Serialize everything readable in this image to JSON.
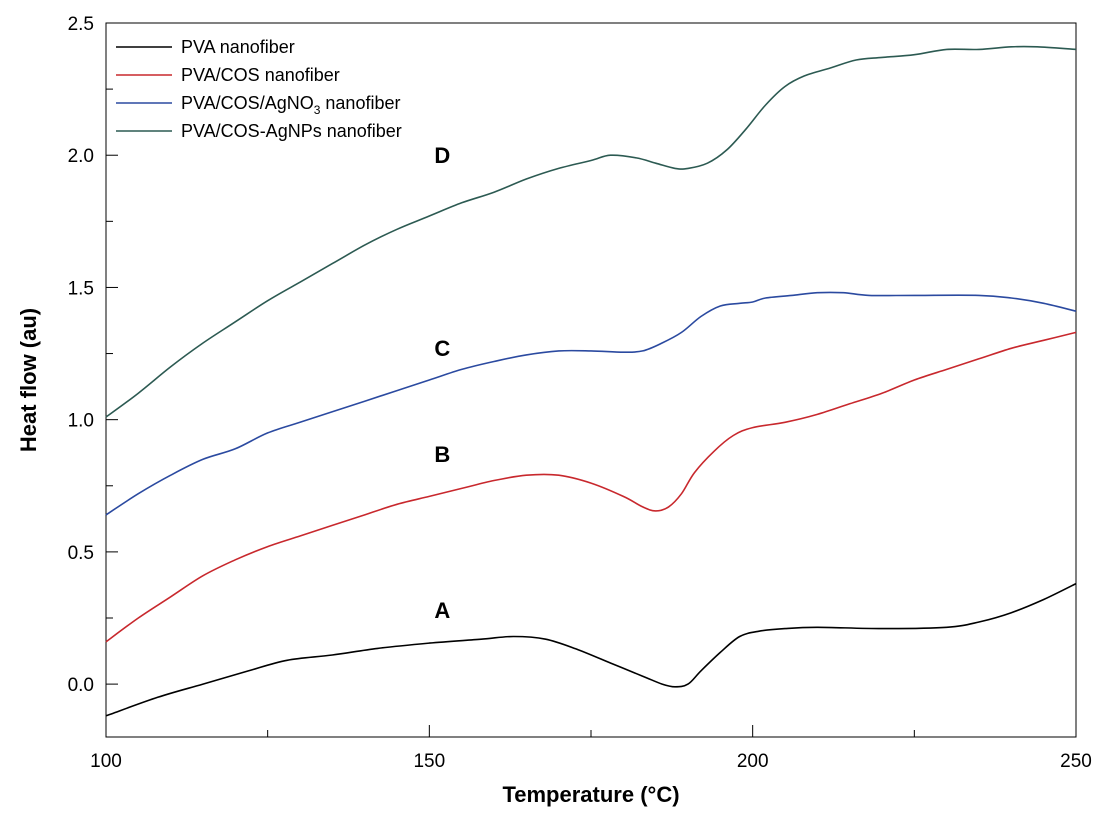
{
  "chart_data": {
    "type": "line",
    "title": "",
    "xlabel": "Temperature (°C)",
    "ylabel": "Heat flow (au)",
    "xlim": [
      100,
      250
    ],
    "ylim": [
      -0.2,
      2.5
    ],
    "x_ticks_major": [
      100,
      150,
      200,
      250
    ],
    "x_tick_labels": [
      "100",
      "150",
      "200",
      "250"
    ],
    "x_ticks_minor": [
      125,
      175,
      225
    ],
    "y_ticks_major": [
      0.0,
      0.5,
      1.0,
      1.5,
      2.0,
      2.5
    ],
    "y_tick_labels": [
      "0.0",
      "0.5",
      "1.0",
      "1.5",
      "2.0",
      "2.5"
    ],
    "y_ticks_minor": [
      0.25,
      0.75,
      1.25,
      1.75,
      2.25
    ],
    "grid": false,
    "legend_position": "top-left",
    "series": [
      {
        "name": "PVA nanofiber",
        "label_main": "PVA nanofiber",
        "label_sub": "",
        "label_after": "",
        "curve_label": "A",
        "curve_label_at": [
          152,
          0.25
        ],
        "color": "#000000",
        "points": [
          [
            100,
            -0.12
          ],
          [
            108,
            -0.05
          ],
          [
            115,
            0.0
          ],
          [
            122,
            0.05
          ],
          [
            128,
            0.09
          ],
          [
            135,
            0.11
          ],
          [
            142,
            0.135
          ],
          [
            150,
            0.155
          ],
          [
            158,
            0.17
          ],
          [
            163,
            0.18
          ],
          [
            168,
            0.17
          ],
          [
            173,
            0.13
          ],
          [
            178,
            0.08
          ],
          [
            183,
            0.03
          ],
          [
            186,
            0.0
          ],
          [
            188,
            -0.01
          ],
          [
            190,
            0.0
          ],
          [
            192,
            0.05
          ],
          [
            195,
            0.12
          ],
          [
            198,
            0.18
          ],
          [
            201,
            0.2
          ],
          [
            205,
            0.21
          ],
          [
            210,
            0.215
          ],
          [
            220,
            0.21
          ],
          [
            230,
            0.215
          ],
          [
            235,
            0.235
          ],
          [
            240,
            0.27
          ],
          [
            245,
            0.32
          ],
          [
            250,
            0.38
          ]
        ]
      },
      {
        "name": "PVA/COS  nanofiber",
        "label_main": "PVA/COS  nanofiber",
        "label_sub": "",
        "label_after": "",
        "curve_label": "B",
        "curve_label_at": [
          152,
          0.84
        ],
        "color": "#c8282d",
        "points": [
          [
            100,
            0.16
          ],
          [
            105,
            0.25
          ],
          [
            110,
            0.33
          ],
          [
            115,
            0.41
          ],
          [
            120,
            0.47
          ],
          [
            125,
            0.52
          ],
          [
            130,
            0.56
          ],
          [
            135,
            0.6
          ],
          [
            140,
            0.64
          ],
          [
            145,
            0.68
          ],
          [
            150,
            0.71
          ],
          [
            155,
            0.74
          ],
          [
            160,
            0.77
          ],
          [
            165,
            0.79
          ],
          [
            170,
            0.79
          ],
          [
            175,
            0.76
          ],
          [
            180,
            0.71
          ],
          [
            183,
            0.67
          ],
          [
            185,
            0.655
          ],
          [
            187,
            0.67
          ],
          [
            189,
            0.72
          ],
          [
            191,
            0.8
          ],
          [
            194,
            0.88
          ],
          [
            197,
            0.94
          ],
          [
            200,
            0.97
          ],
          [
            205,
            0.99
          ],
          [
            210,
            1.02
          ],
          [
            215,
            1.06
          ],
          [
            220,
            1.1
          ],
          [
            225,
            1.15
          ],
          [
            230,
            1.19
          ],
          [
            235,
            1.23
          ],
          [
            240,
            1.27
          ],
          [
            245,
            1.3
          ],
          [
            250,
            1.33
          ]
        ]
      },
      {
        "name": "PVA/COS/AgNO3 nanofiber",
        "label_main": "PVA/COS/AgNO",
        "label_sub": "3",
        "label_after": " nanofiber",
        "curve_label": "C",
        "curve_label_at": [
          152,
          1.24
        ],
        "color": "#2b4aa0",
        "points": [
          [
            100,
            0.64
          ],
          [
            105,
            0.72
          ],
          [
            110,
            0.79
          ],
          [
            115,
            0.85
          ],
          [
            120,
            0.89
          ],
          [
            125,
            0.95
          ],
          [
            130,
            0.99
          ],
          [
            135,
            1.03
          ],
          [
            140,
            1.07
          ],
          [
            145,
            1.11
          ],
          [
            150,
            1.15
          ],
          [
            155,
            1.19
          ],
          [
            160,
            1.22
          ],
          [
            165,
            1.245
          ],
          [
            170,
            1.26
          ],
          [
            175,
            1.26
          ],
          [
            180,
            1.255
          ],
          [
            183,
            1.26
          ],
          [
            186,
            1.29
          ],
          [
            189,
            1.33
          ],
          [
            192,
            1.39
          ],
          [
            195,
            1.43
          ],
          [
            198,
            1.44
          ],
          [
            200,
            1.445
          ],
          [
            202,
            1.46
          ],
          [
            206,
            1.47
          ],
          [
            210,
            1.48
          ],
          [
            214,
            1.48
          ],
          [
            218,
            1.47
          ],
          [
            225,
            1.47
          ],
          [
            235,
            1.47
          ],
          [
            240,
            1.46
          ],
          [
            245,
            1.44
          ],
          [
            250,
            1.41
          ]
        ]
      },
      {
        "name": "PVA/COS-AgNPs nanofiber",
        "label_main": "PVA/COS-AgNPs nanofiber",
        "label_sub": "",
        "label_after": "",
        "curve_label": "D",
        "curve_label_at": [
          152,
          1.97
        ],
        "color": "#2c5a52",
        "points": [
          [
            100,
            1.01
          ],
          [
            105,
            1.1
          ],
          [
            110,
            1.2
          ],
          [
            115,
            1.29
          ],
          [
            120,
            1.37
          ],
          [
            125,
            1.45
          ],
          [
            130,
            1.52
          ],
          [
            135,
            1.59
          ],
          [
            140,
            1.66
          ],
          [
            145,
            1.72
          ],
          [
            150,
            1.77
          ],
          [
            155,
            1.82
          ],
          [
            160,
            1.86
          ],
          [
            165,
            1.91
          ],
          [
            170,
            1.95
          ],
          [
            175,
            1.98
          ],
          [
            178,
            2.0
          ],
          [
            182,
            1.99
          ],
          [
            185,
            1.97
          ],
          [
            188,
            1.95
          ],
          [
            190,
            1.95
          ],
          [
            193,
            1.97
          ],
          [
            196,
            2.02
          ],
          [
            199,
            2.1
          ],
          [
            202,
            2.19
          ],
          [
            205,
            2.26
          ],
          [
            208,
            2.3
          ],
          [
            212,
            2.33
          ],
          [
            216,
            2.36
          ],
          [
            220,
            2.37
          ],
          [
            225,
            2.38
          ],
          [
            230,
            2.4
          ],
          [
            235,
            2.4
          ],
          [
            240,
            2.41
          ],
          [
            244,
            2.41
          ],
          [
            250,
            2.4
          ]
        ]
      }
    ]
  }
}
